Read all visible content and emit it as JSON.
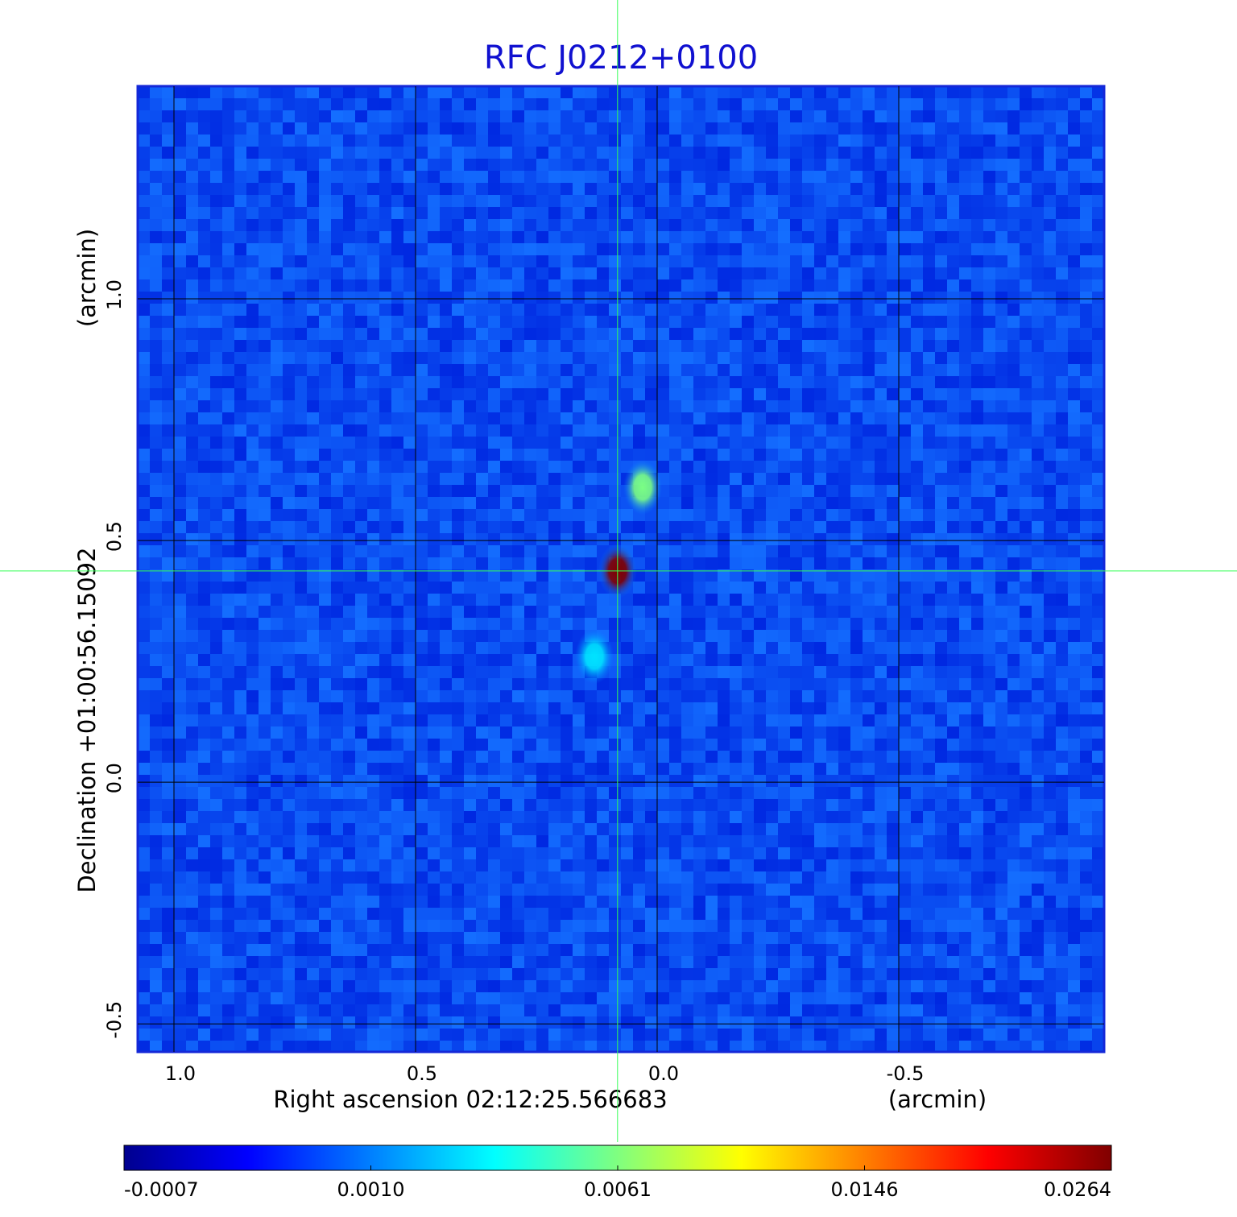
{
  "chart_data": {
    "type": "image",
    "title": "RFC J0212+0100",
    "x_label": "Right ascension  02:12:25.566683",
    "x_unit": "(arcmin)",
    "y_label": "Declination  +01:00:56.15092",
    "y_unit": "(arcmin)",
    "xlim": [
      1.075,
      -0.925
    ],
    "ylim": [
      -0.558,
      1.44
    ],
    "xticks": [
      {
        "value": 1,
        "label": "1.0"
      },
      0.5,
      {
        "value": 0,
        "label": "0.0"
      },
      -0.5
    ],
    "yticks": [
      {
        "value": 1,
        "label": "1.0"
      },
      0.5,
      {
        "value": 0,
        "label": "0.0"
      },
      -0.5
    ],
    "grid": true,
    "colorbar_ticks": [
      -0.0007,
      {
        "value": 0.001,
        "label": "0.0010"
      },
      0.0061,
      0.0146,
      0.0264
    ],
    "sources": {
      "x": [
        0.082,
        0.03,
        0.13
      ],
      "y": [
        0.437,
        0.61,
        0.26
      ],
      "values": [
        0.0264,
        0.006,
        0.003
      ]
    }
  }
}
